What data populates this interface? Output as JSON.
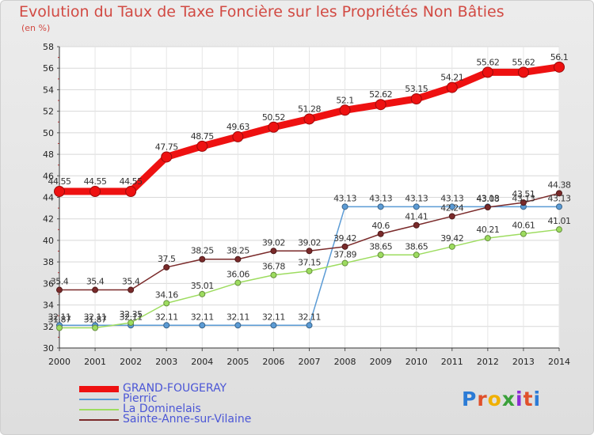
{
  "title": "Evolution du Taux de Taxe Foncière sur les Propriétés Non Bâties",
  "subtitle": "(en %)",
  "logo": {
    "text": "Proxiti",
    "colors": [
      "#2b7bd6",
      "#e0502b",
      "#f0b000",
      "#3aa03a",
      "#8a2bd6",
      "#e0502b",
      "#2b7bd6"
    ]
  },
  "chart_data": {
    "type": "line",
    "x": [
      2000,
      2001,
      2002,
      2003,
      2004,
      2005,
      2006,
      2007,
      2008,
      2009,
      2010,
      2011,
      2012,
      2013,
      2014
    ],
    "ylim": [
      30,
      58
    ],
    "yticks": [
      30,
      32,
      34,
      36,
      38,
      40,
      42,
      44,
      46,
      48,
      50,
      52,
      54,
      56,
      58
    ],
    "grid": true,
    "legend_position": "bottom-left",
    "series": [
      {
        "name": "GRAND-FOUGERAY",
        "color": "#ee1111",
        "values": [
          44.55,
          44.55,
          44.55,
          47.75,
          48.75,
          49.63,
          50.52,
          51.28,
          52.1,
          52.62,
          53.15,
          54.21,
          55.62,
          55.62,
          56.1
        ],
        "labels": [
          "44.55",
          "44.55",
          "44.55",
          "47.75",
          "48.75",
          "49.63",
          "50.52",
          "51.28",
          "52.1",
          "52.62",
          "53.15",
          "54.21",
          "55.62",
          "55.62",
          "56.1"
        ]
      },
      {
        "name": "Pierric",
        "color": "#5b9bd5",
        "values": [
          32.11,
          32.11,
          32.11,
          32.11,
          32.11,
          32.11,
          32.11,
          32.11,
          43.13,
          43.13,
          43.13,
          43.13,
          43.13,
          43.13,
          43.13
        ],
        "labels": [
          "32.11",
          "32.11",
          "32.11",
          "32.11",
          "32.11",
          "32.11",
          "32.11",
          "32.11",
          "43.13",
          "43.13",
          "43.13",
          "43.13",
          "43.13",
          "43.13",
          "43.13"
        ]
      },
      {
        "name": "La Dominelais",
        "color": "#9ddc5f",
        "values": [
          31.87,
          31.87,
          32.35,
          34.16,
          35.01,
          36.06,
          36.78,
          37.15,
          37.89,
          38.65,
          38.65,
          39.42,
          40.21,
          40.61,
          41.01
        ],
        "labels": [
          "31.87",
          "31.87",
          "32.35",
          "34.16",
          "35.01",
          "36.06",
          "36.78",
          "37.15",
          "37.89",
          "38.65",
          "38.65",
          "39.42",
          "40.21",
          "40.61",
          "41.01"
        ]
      },
      {
        "name": "Sainte-Anne-sur-Vilaine",
        "color": "#7a2a2a",
        "values": [
          35.4,
          35.4,
          35.4,
          37.5,
          38.25,
          38.25,
          39.02,
          39.02,
          39.42,
          40.6,
          41.41,
          42.24,
          43.08,
          43.51,
          44.38
        ],
        "labels": [
          "35.4",
          "35.4",
          "35.4",
          "37.5",
          "38.25",
          "38.25",
          "39.02",
          "39.02",
          "39.42",
          "40.6",
          "41.41",
          "42.24",
          "43.08",
          "43.51",
          "44.38"
        ]
      }
    ]
  }
}
